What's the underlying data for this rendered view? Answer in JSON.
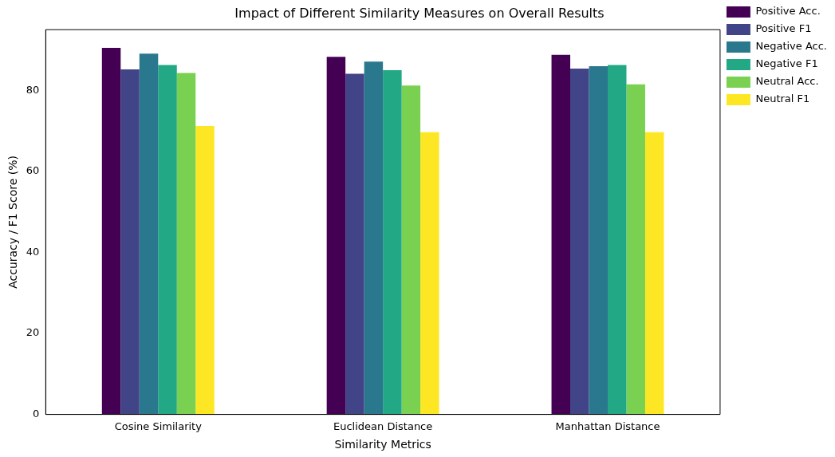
{
  "chart_data": {
    "type": "bar",
    "title": "Impact of Different Similarity Measures on Overall Results",
    "xlabel": "Similarity Metrics",
    "ylabel": "Accuracy / F1 Score (%)",
    "categories": [
      "Cosine Similarity",
      "Euclidean Distance",
      "Manhattan Distance"
    ],
    "series": [
      {
        "name": "Positive Acc.",
        "color": "#440154",
        "values": [
          90.5,
          88.3,
          88.8
        ]
      },
      {
        "name": "Positive F1",
        "color": "#414487",
        "values": [
          85.2,
          84.1,
          85.4
        ]
      },
      {
        "name": "Negative Acc.",
        "color": "#2a788e",
        "values": [
          89.1,
          87.1,
          86.0
        ]
      },
      {
        "name": "Negative F1",
        "color": "#22a884",
        "values": [
          86.3,
          85.0,
          86.3
        ]
      },
      {
        "name": "Neutral Acc.",
        "color": "#7ad151",
        "values": [
          84.3,
          81.2,
          81.5
        ]
      },
      {
        "name": "Neutral F1",
        "color": "#fde725",
        "values": [
          71.2,
          69.7,
          69.7
        ]
      }
    ],
    "ylim": [
      0,
      95
    ],
    "yticks": [
      0,
      20,
      40,
      60,
      80
    ],
    "grid": false,
    "legend": "top right"
  }
}
